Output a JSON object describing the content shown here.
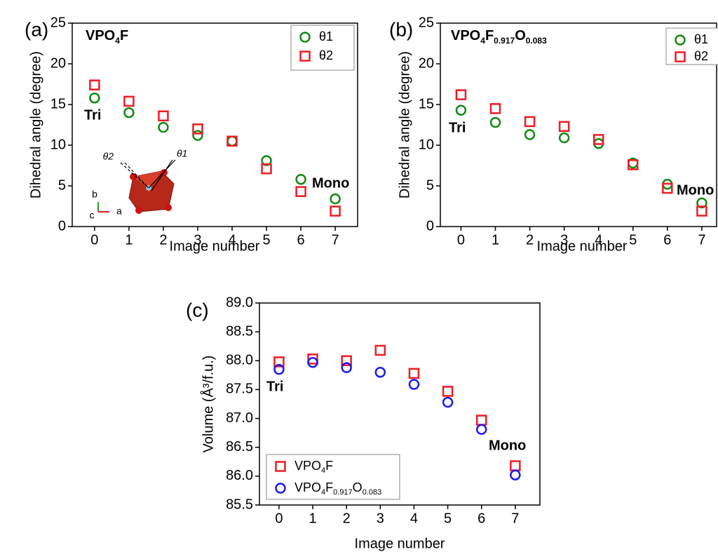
{
  "chart_data": [
    {
      "type": "scatter",
      "panel_label": "(a)",
      "title": [
        {
          "text": "VPO"
        },
        {
          "text": "4",
          "sub": true
        },
        {
          "text": "F"
        }
      ],
      "x_label": "Image number",
      "y_label": "Dihedral angle (degree)",
      "x": [
        0,
        1,
        2,
        3,
        4,
        5,
        6,
        7
      ],
      "series": [
        {
          "name": [
            {
              "text": "θ1"
            }
          ],
          "color": "#138a13",
          "marker": "circle",
          "values": [
            15.8,
            14.0,
            12.2,
            11.2,
            10.5,
            8.1,
            5.8,
            3.4
          ]
        },
        {
          "name": [
            {
              "text": "θ2"
            }
          ],
          "color": "#ee1c24",
          "marker": "square",
          "values": [
            17.4,
            15.4,
            13.6,
            12.0,
            10.5,
            7.1,
            4.3,
            1.9
          ]
        }
      ],
      "xlim": [
        -0.65,
        7.65
      ],
      "xticks": [
        0,
        1,
        2,
        3,
        4,
        5,
        6,
        7
      ],
      "ylim": [
        0,
        25
      ],
      "yticks": [
        0,
        5,
        10,
        15,
        20,
        25
      ],
      "annotations": [
        "Tri",
        "Mono"
      ],
      "inset_labels": [
        "θ2",
        "θ1",
        "b",
        "c",
        "a"
      ]
    },
    {
      "type": "scatter",
      "panel_label": "(b)",
      "title": [
        {
          "text": "VPO"
        },
        {
          "text": "4",
          "sub": true
        },
        {
          "text": "F"
        },
        {
          "text": "0.917",
          "sub": true
        },
        {
          "text": "O"
        },
        {
          "text": "0.083",
          "sub": true
        }
      ],
      "x_label": "Image number",
      "y_label": "Dihedral angle (degree)",
      "x": [
        0,
        1,
        2,
        3,
        4,
        5,
        6,
        7
      ],
      "series": [
        {
          "name": [
            {
              "text": "θ1"
            }
          ],
          "color": "#138a13",
          "marker": "circle",
          "values": [
            14.3,
            12.8,
            11.3,
            10.9,
            10.2,
            7.8,
            5.2,
            2.9
          ]
        },
        {
          "name": [
            {
              "text": "θ2"
            }
          ],
          "color": "#ee1c24",
          "marker": "square",
          "values": [
            16.2,
            14.5,
            12.9,
            12.3,
            10.7,
            7.6,
            4.7,
            1.9
          ]
        }
      ],
      "xlim": [
        -0.6,
        7.43
      ],
      "xticks": [
        0,
        1,
        2,
        3,
        4,
        5,
        6,
        7
      ],
      "ylim": [
        0,
        25
      ],
      "yticks": [
        0,
        5,
        10,
        15,
        20,
        25
      ],
      "annotations": [
        "Tri",
        "Mono"
      ]
    },
    {
      "type": "scatter",
      "panel_label": "(c)",
      "x_label": "Image number",
      "y_label": "Volume (Å³/f.u.)",
      "x": [
        0,
        1,
        2,
        3,
        4,
        5,
        6,
        7
      ],
      "series": [
        {
          "name": [
            {
              "text": "VPO"
            },
            {
              "text": "4",
              "sub": true
            },
            {
              "text": "F"
            }
          ],
          "color": "#ee1c24",
          "marker": "square",
          "values": [
            87.98,
            88.03,
            88.0,
            88.18,
            87.78,
            87.47,
            86.97,
            86.18
          ]
        },
        {
          "name": [
            {
              "text": "VPO"
            },
            {
              "text": "4",
              "sub": true
            },
            {
              "text": "F"
            },
            {
              "text": "0.917",
              "sub": true
            },
            {
              "text": "O"
            },
            {
              "text": "0.083",
              "sub": true
            }
          ],
          "color": "#1c1cf0",
          "marker": "circle",
          "values": [
            87.85,
            87.97,
            87.88,
            87.8,
            87.59,
            87.28,
            86.81,
            86.02
          ]
        }
      ],
      "xlim": [
        -0.58,
        7.73
      ],
      "xticks": [
        0,
        1,
        2,
        3,
        4,
        5,
        6,
        7
      ],
      "ylim": [
        85.5,
        89.0
      ],
      "yticks": [
        85.5,
        {
          "value": 86,
          "label": "86.0"
        },
        86.5,
        {
          "value": 87,
          "label": "87.0"
        },
        87.5,
        {
          "value": 88,
          "label": "88.0"
        },
        88.5,
        {
          "value": 89,
          "label": "89.0"
        }
      ],
      "annotations": [
        "Tri",
        "Mono"
      ]
    }
  ]
}
